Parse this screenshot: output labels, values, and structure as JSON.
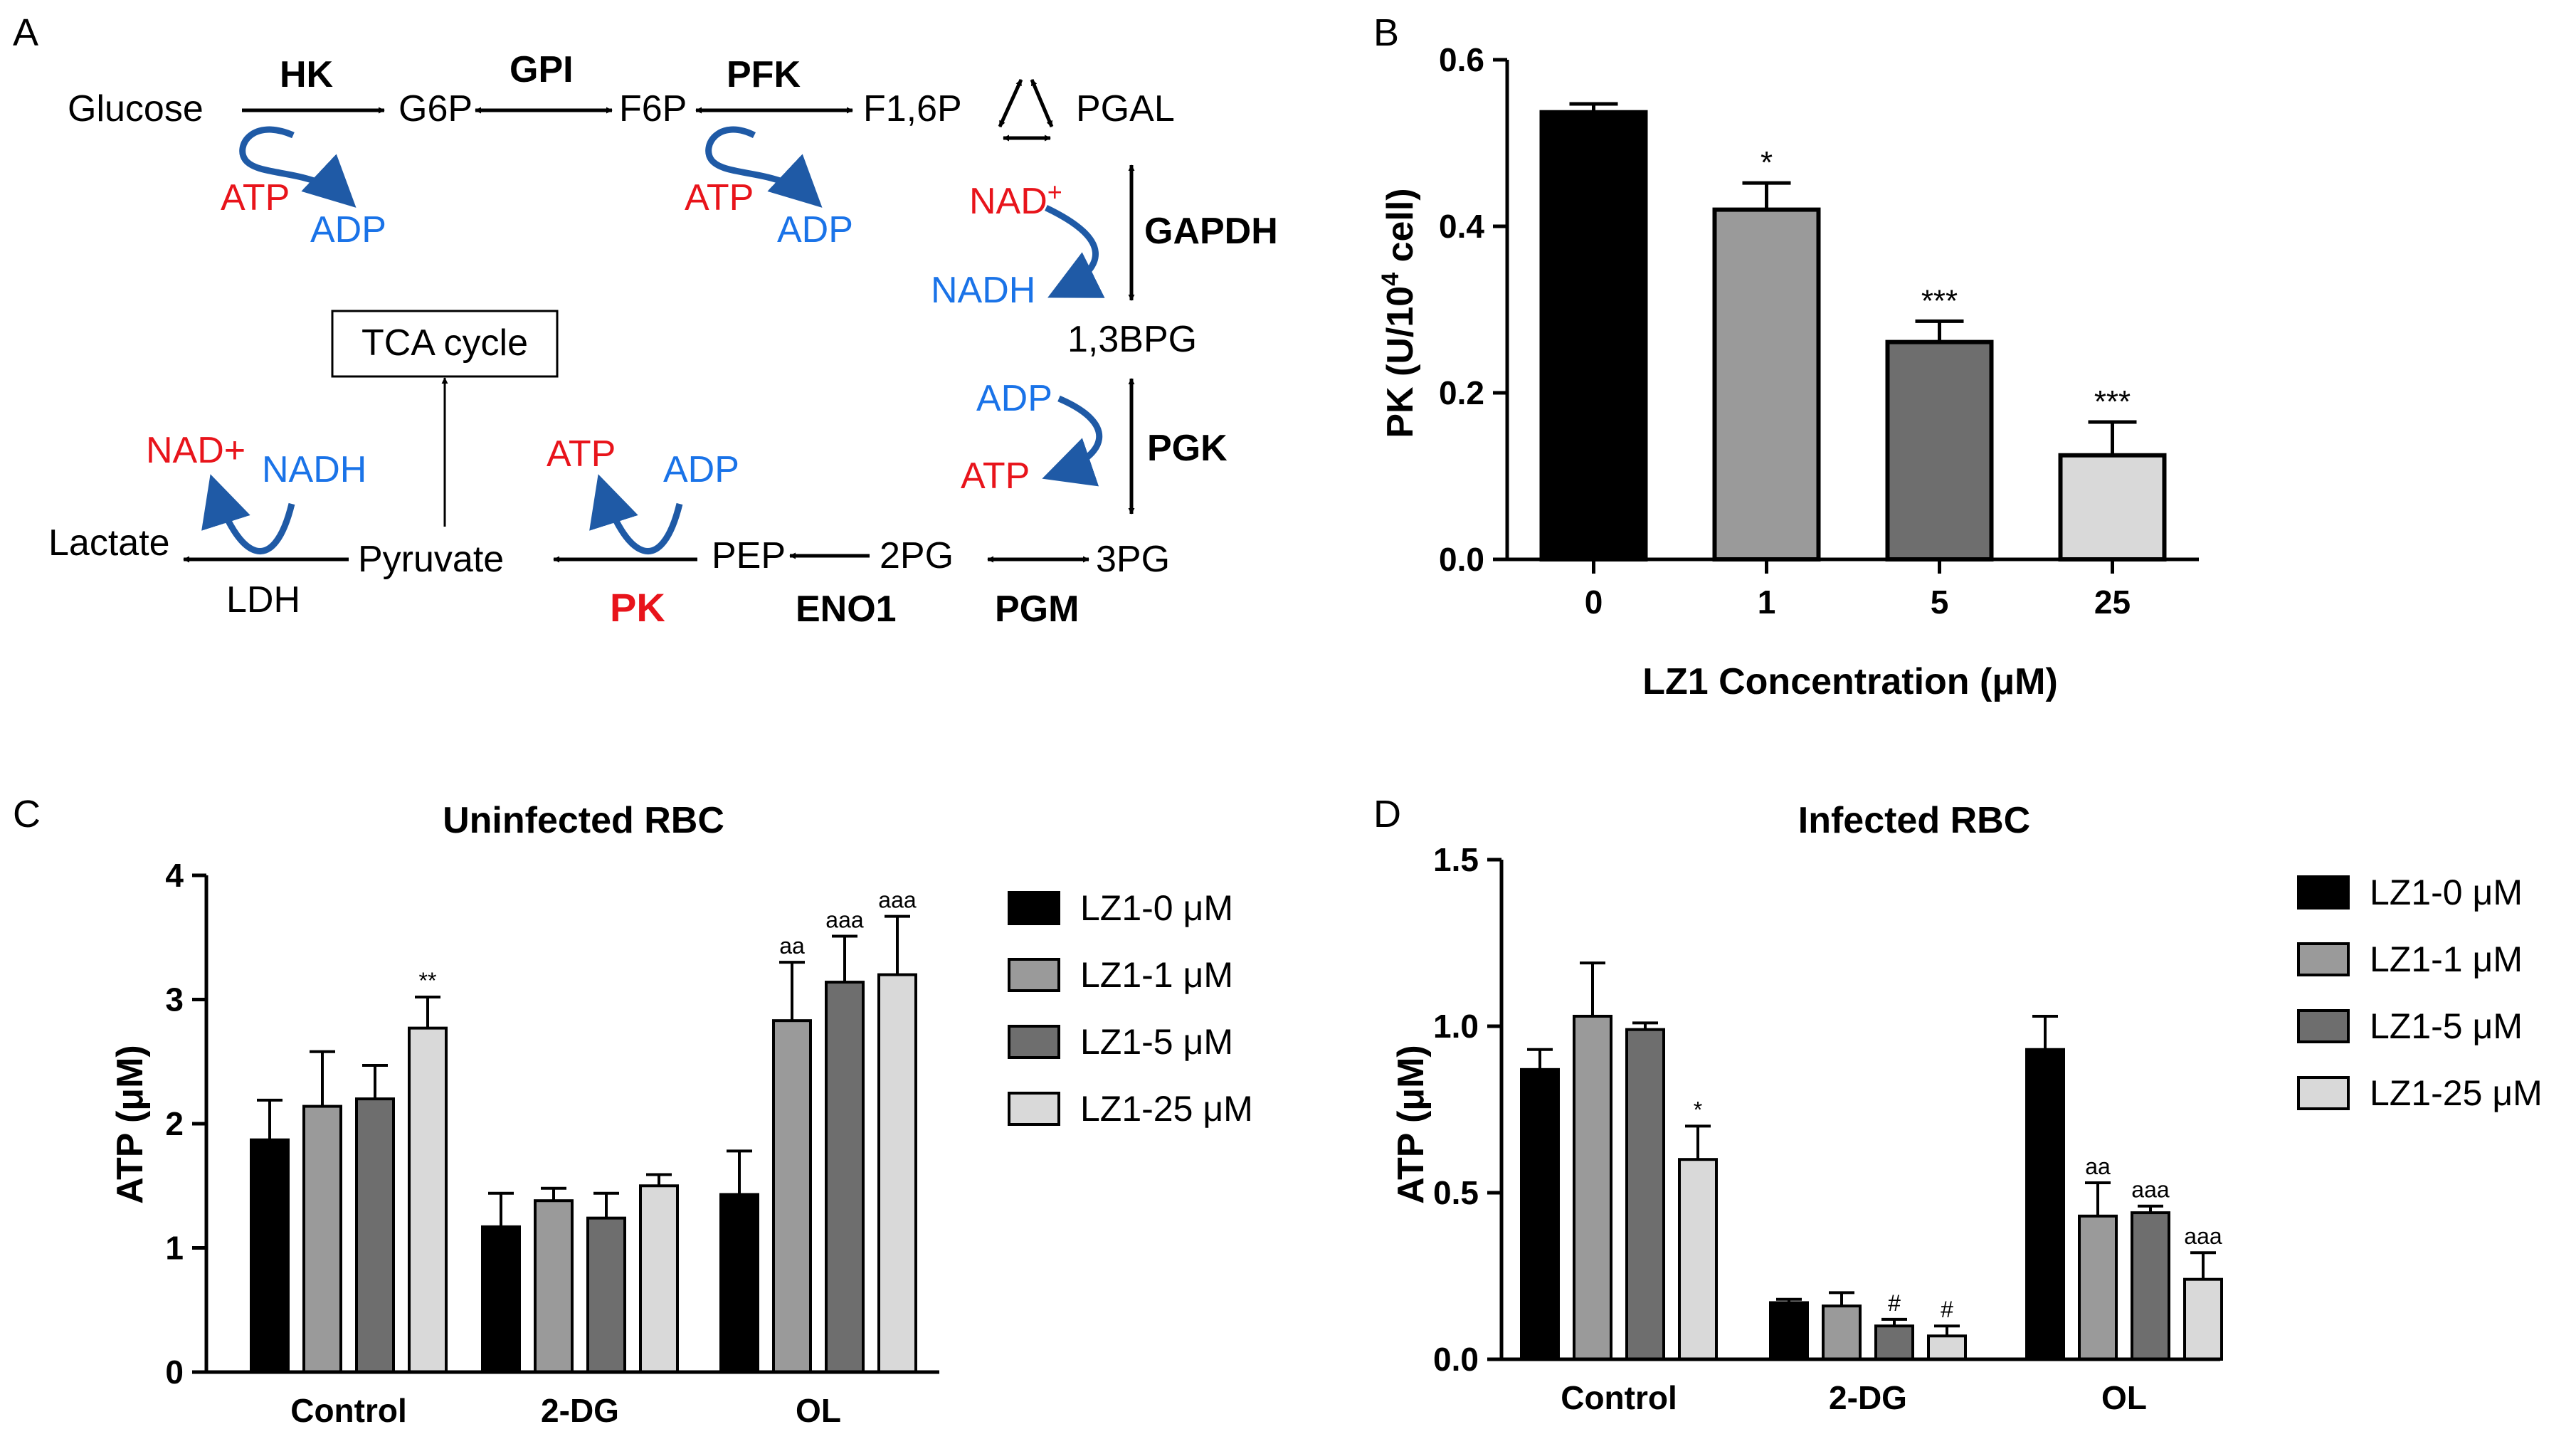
{
  "panel_labels": {
    "a": "A",
    "b": "B",
    "c": "C",
    "d": "D"
  },
  "colors": {
    "red": "#e8141b",
    "blue": "#1a73e8",
    "arrow_blue": "#1f5aa6",
    "black": "#000000"
  },
  "pathway": {
    "metabolites": {
      "glucose": "Glucose",
      "g6p": "G6P",
      "f6p": "F6P",
      "f16p": "F1,6P",
      "pgal": "PGAL",
      "bpg13": "1,3BPG",
      "pg3": "3PG",
      "pg2": "2PG",
      "pep": "PEP",
      "pyruvate": "Pyruvate",
      "lactate": "Lactate",
      "tca": "TCA cycle"
    },
    "enzymes": {
      "hk": "HK",
      "gpi": "GPI",
      "pfk": "PFK",
      "gapdh": "GAPDH",
      "pgk": "PGK",
      "pgm": "PGM",
      "eno1": "ENO1",
      "pk": "PK",
      "ldh": "LDH"
    },
    "cofactors": {
      "atp": "ATP",
      "adp": "ADP",
      "nad_sup": "NAD",
      "nad_plus": "NAD+",
      "plus": "+",
      "nadh": "NADH"
    }
  },
  "chart_data": [
    {
      "panel": "B",
      "type": "bar",
      "title": "",
      "xlabel": "LZ1 Concentration (μM)",
      "ylabel_main": "PK (U/10",
      "ylabel_sup": "4",
      "ylabel_tail": " cell)",
      "categories": [
        "0",
        "1",
        "5",
        "25"
      ],
      "values": [
        0.537,
        0.42,
        0.261,
        0.125
      ],
      "errors": [
        0.01,
        0.032,
        0.025,
        0.04
      ],
      "significance": [
        "",
        "*",
        "***",
        "***"
      ],
      "ylim": [
        0,
        0.6
      ],
      "yticks": [
        "0.0",
        "0.2",
        "0.4",
        "0.6"
      ],
      "bar_colors": [
        "#000000",
        "#9a9a9a",
        "#6e6e6e",
        "#d9d9d9"
      ]
    },
    {
      "panel": "C",
      "type": "bar",
      "title": "Uninfected RBC",
      "ylabel": "ATP (μM)",
      "categories": [
        "Control",
        "2-DG",
        "OL"
      ],
      "ylim": [
        0,
        4
      ],
      "yticks": [
        "0",
        "1",
        "2",
        "3",
        "4"
      ],
      "series": [
        {
          "name": "LZ1-0 μM",
          "color": "#000000",
          "values": [
            1.87,
            1.17,
            1.43
          ],
          "errors": [
            0.32,
            0.27,
            0.35
          ],
          "marks": [
            "",
            "",
            ""
          ]
        },
        {
          "name": "LZ1-1 μM",
          "color": "#9a9a9a",
          "values": [
            2.14,
            1.38,
            2.83
          ],
          "errors": [
            0.44,
            0.1,
            0.47
          ],
          "marks": [
            "",
            "",
            "aa"
          ]
        },
        {
          "name": "LZ1-5 μM",
          "color": "#6e6e6e",
          "values": [
            2.2,
            1.24,
            3.14
          ],
          "errors": [
            0.27,
            0.2,
            0.37
          ],
          "marks": [
            "",
            "",
            "aaa"
          ]
        },
        {
          "name": "LZ1-25 μM",
          "color": "#d9d9d9",
          "values": [
            2.77,
            1.5,
            3.2
          ],
          "errors": [
            0.25,
            0.09,
            0.47
          ],
          "marks": [
            "**",
            "",
            "aaa"
          ]
        }
      ]
    },
    {
      "panel": "D",
      "type": "bar",
      "title": "Infected RBC",
      "ylabel": "ATP (μM)",
      "categories": [
        "Control",
        "2-DG",
        "OL"
      ],
      "ylim": [
        0,
        1.5
      ],
      "yticks": [
        "0.0",
        "0.5",
        "1.0",
        "1.5"
      ],
      "series": [
        {
          "name": "LZ1-0 μM",
          "color": "#000000",
          "values": [
            0.87,
            0.17,
            0.93
          ],
          "errors": [
            0.06,
            0.01,
            0.1
          ],
          "marks": [
            "",
            "",
            ""
          ]
        },
        {
          "name": "LZ1-1 μM",
          "color": "#9a9a9a",
          "values": [
            1.03,
            0.16,
            0.43
          ],
          "errors": [
            0.16,
            0.04,
            0.1
          ],
          "marks": [
            "",
            "",
            "aa"
          ]
        },
        {
          "name": "LZ1-5 μM",
          "color": "#6e6e6e",
          "values": [
            0.99,
            0.1,
            0.44
          ],
          "errors": [
            0.02,
            0.02,
            0.02
          ],
          "marks": [
            "",
            "#",
            "aaa"
          ]
        },
        {
          "name": "LZ1-25 μM",
          "color": "#d9d9d9",
          "values": [
            0.6,
            0.07,
            0.24
          ],
          "errors": [
            0.1,
            0.03,
            0.08
          ],
          "marks": [
            "*",
            "#",
            "aaa"
          ]
        }
      ]
    }
  ]
}
